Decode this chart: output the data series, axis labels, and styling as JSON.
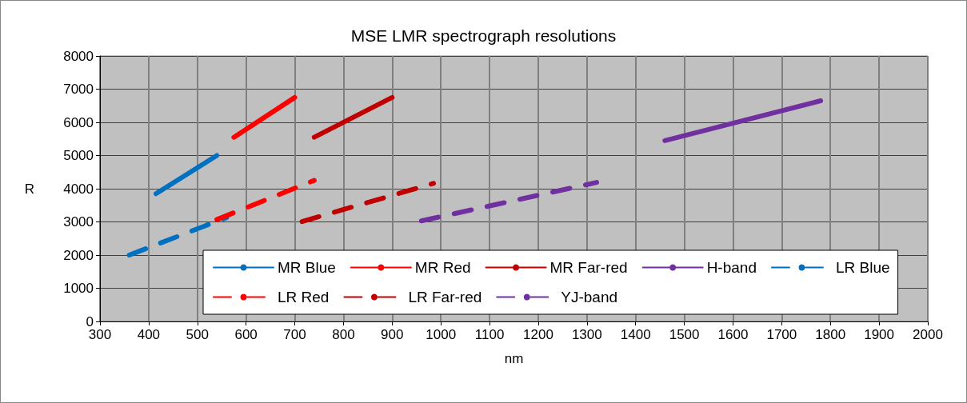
{
  "chart_data": {
    "type": "line",
    "title": "MSE LMR spectrograph resolutions",
    "xlabel": "nm",
    "ylabel": "R",
    "xlim": [
      300,
      2000
    ],
    "xticks": [
      300,
      400,
      500,
      600,
      700,
      800,
      900,
      1000,
      1100,
      1200,
      1300,
      1400,
      1500,
      1600,
      1700,
      1800,
      1900,
      2000
    ],
    "ylim": [
      0,
      8000
    ],
    "yticks": [
      0,
      1000,
      2000,
      3000,
      4000,
      5000,
      6000,
      7000,
      8000
    ],
    "grid": true,
    "legend": "bottom",
    "marker": "none",
    "line_style": "solid",
    "series": [
      {
        "name": "MR Blue",
        "color": "#0070c0",
        "x": [
          415,
          540
        ],
        "values": [
          3850,
          5000
        ]
      },
      {
        "name": "MR Red",
        "color": "#ff0000",
        "x": [
          575,
          700
        ],
        "values": [
          5550,
          6750
        ]
      },
      {
        "name": "MR Far-red",
        "color": "#c00000",
        "x": [
          740,
          900
        ],
        "values": [
          5550,
          6750
        ]
      },
      {
        "name": "H-band",
        "color": "#7030a0",
        "x": [
          1460,
          1780
        ],
        "values": [
          5450,
          6650
        ]
      },
      {
        "name": "LR Blue",
        "color": "#0070c0",
        "x": [
          360,
          560
        ],
        "values": [
          2000,
          3130
        ],
        "line_style": "dashed"
      },
      {
        "name": "LR Red",
        "color": "#ff0000",
        "x": [
          540,
          740
        ],
        "values": [
          3070,
          4250
        ],
        "line_style": "dashed"
      },
      {
        "name": "LR Far-red",
        "color": "#c00000",
        "x": [
          715,
          985
        ],
        "values": [
          3010,
          4160
        ],
        "line_style": "dashed"
      },
      {
        "name": "YJ-band",
        "color": "#7030a0",
        "x": [
          960,
          1320
        ],
        "values": [
          3030,
          4190
        ],
        "line_style": "dashed"
      }
    ]
  }
}
